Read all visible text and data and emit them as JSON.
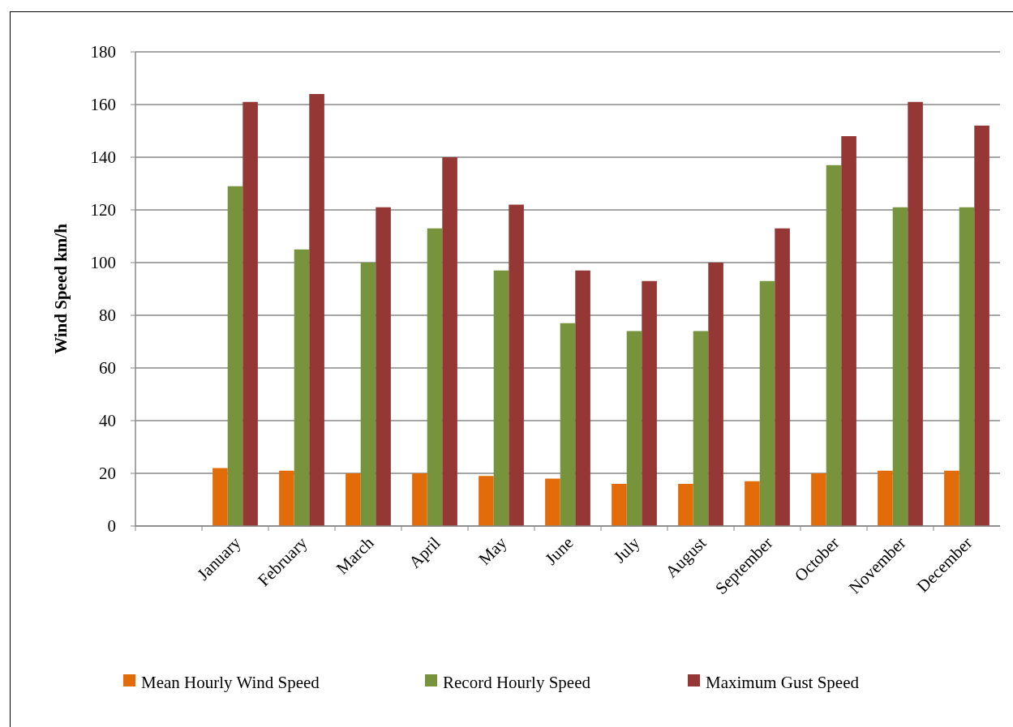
{
  "chart_data": {
    "type": "bar",
    "ylabel": "Wind Speed km/h",
    "categories": [
      null,
      "January",
      "February",
      "March",
      "April",
      "May",
      "June",
      "July",
      "August",
      "September",
      "October",
      "November",
      "December"
    ],
    "series": [
      {
        "name": "Mean Hourly Wind Speed",
        "color": "#e36c0a",
        "values": [
          null,
          22,
          21,
          20,
          20,
          19,
          18,
          16,
          16,
          17,
          20,
          21,
          21
        ]
      },
      {
        "name": "Record Hourly Speed",
        "color": "#77933c",
        "values": [
          null,
          129,
          105,
          100,
          113,
          97,
          77,
          74,
          74,
          93,
          137,
          121,
          121
        ]
      },
      {
        "name": "Maximum Gust Speed",
        "color": "#953735",
        "values": [
          null,
          161,
          164,
          121,
          140,
          122,
          97,
          93,
          100,
          113,
          148,
          161,
          152
        ]
      }
    ],
    "ylim": [
      0,
      180
    ],
    "yticks": [
      0,
      20,
      40,
      60,
      80,
      100,
      120,
      140,
      160,
      180
    ],
    "grid": "y",
    "legend": "bottom"
  }
}
